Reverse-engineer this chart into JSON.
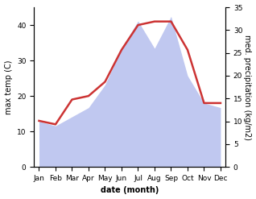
{
  "months": [
    "Jan",
    "Feb",
    "Mar",
    "Apr",
    "May",
    "Jun",
    "Jul",
    "Aug",
    "Sep",
    "Oct",
    "Nov",
    "Dec"
  ],
  "temp": [
    13,
    12,
    19,
    20,
    24,
    33,
    40,
    41,
    41,
    33,
    18,
    18
  ],
  "precip": [
    10,
    9,
    11,
    13,
    18,
    26,
    32,
    26,
    33,
    20,
    14,
    13
  ],
  "temp_color": "#cc3333",
  "precip_color": "#c0c8f0",
  "ylabel_left": "max temp (C)",
  "ylabel_right": "med. precipitation (kg/m2)",
  "xlabel": "date (month)",
  "ylim_left": [
    0,
    45
  ],
  "ylim_right": [
    0,
    35
  ],
  "yticks_left": [
    0,
    10,
    20,
    30,
    40
  ],
  "yticks_right": [
    0,
    5,
    10,
    15,
    20,
    25,
    30,
    35
  ],
  "background_color": "#ffffff",
  "label_fontsize": 7,
  "tick_fontsize": 6.5
}
